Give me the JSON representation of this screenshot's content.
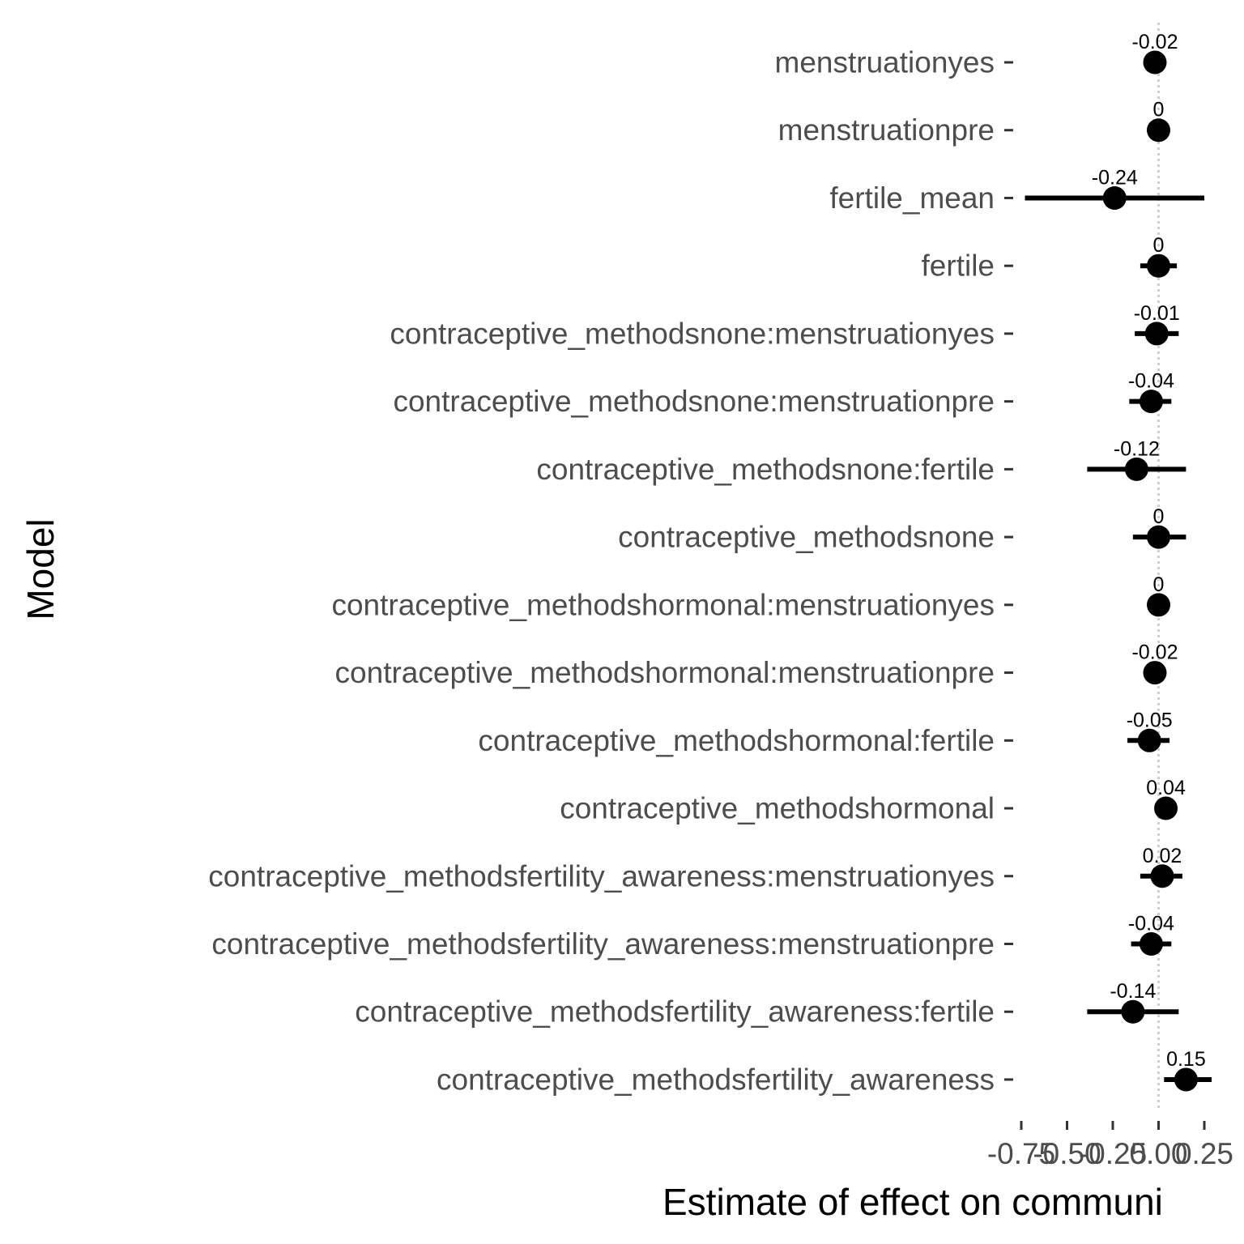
{
  "chart_data": {
    "type": "scatter",
    "style": "forest-plot (point estimates with interval bars)",
    "xlabel": "Estimate of effect on communi",
    "ylabel": "Model",
    "xlim": [
      -0.78,
      0.31
    ],
    "x_ticks": [
      {
        "value": -0.75,
        "label": "-0.75"
      },
      {
        "value": -0.5,
        "label": "-0.50"
      },
      {
        "value": -0.25,
        "label": "-0.25"
      },
      {
        "value": 0.0,
        "label": "0.00"
      },
      {
        "value": 0.25,
        "label": "0.25"
      }
    ],
    "reference_line": 0,
    "grid": false,
    "points": [
      {
        "term": "menstruationyes",
        "estimate": -0.02,
        "lower": -0.02,
        "upper": -0.02,
        "label": "-0.02"
      },
      {
        "term": "menstruationpre",
        "estimate": 0.0,
        "lower": 0.0,
        "upper": 0.0,
        "label": "0"
      },
      {
        "term": "fertile_mean",
        "estimate": -0.24,
        "lower": -0.73,
        "upper": 0.25,
        "label": "-0.24"
      },
      {
        "term": "fertile",
        "estimate": 0.0,
        "lower": -0.1,
        "upper": 0.1,
        "label": "0"
      },
      {
        "term": "contraceptive_methodsnone:menstruationyes",
        "estimate": -0.01,
        "lower": -0.13,
        "upper": 0.11,
        "label": "-0.01"
      },
      {
        "term": "contraceptive_methodsnone:menstruationpre",
        "estimate": -0.04,
        "lower": -0.16,
        "upper": 0.07,
        "label": "-0.04"
      },
      {
        "term": "contraceptive_methodsnone:fertile",
        "estimate": -0.12,
        "lower": -0.39,
        "upper": 0.15,
        "label": "-0.12"
      },
      {
        "term": "contraceptive_methodsnone",
        "estimate": 0.0,
        "lower": -0.14,
        "upper": 0.15,
        "label": "0"
      },
      {
        "term": "contraceptive_methodshormonal:menstruationyes",
        "estimate": 0.0,
        "lower": 0.0,
        "upper": 0.0,
        "label": "0"
      },
      {
        "term": "contraceptive_methodshormonal:menstruationpre",
        "estimate": -0.02,
        "lower": -0.02,
        "upper": -0.02,
        "label": "-0.02"
      },
      {
        "term": "contraceptive_methodshormonal:fertile",
        "estimate": -0.05,
        "lower": -0.17,
        "upper": 0.06,
        "label": "-0.05"
      },
      {
        "term": "contraceptive_methodshormonal",
        "estimate": 0.04,
        "lower": 0.04,
        "upper": 0.04,
        "label": "0.04"
      },
      {
        "term": "contraceptive_methodsfertility_awareness:menstruationyes",
        "estimate": 0.02,
        "lower": -0.1,
        "upper": 0.13,
        "label": "0.02"
      },
      {
        "term": "contraceptive_methodsfertility_awareness:menstruationpre",
        "estimate": -0.04,
        "lower": -0.15,
        "upper": 0.07,
        "label": "-0.04"
      },
      {
        "term": "contraceptive_methodsfertility_awareness:fertile",
        "estimate": -0.14,
        "lower": -0.39,
        "upper": 0.11,
        "label": "-0.14"
      },
      {
        "term": "contraceptive_methodsfertility_awareness",
        "estimate": 0.15,
        "lower": 0.03,
        "upper": 0.29,
        "label": "0.15"
      }
    ]
  }
}
